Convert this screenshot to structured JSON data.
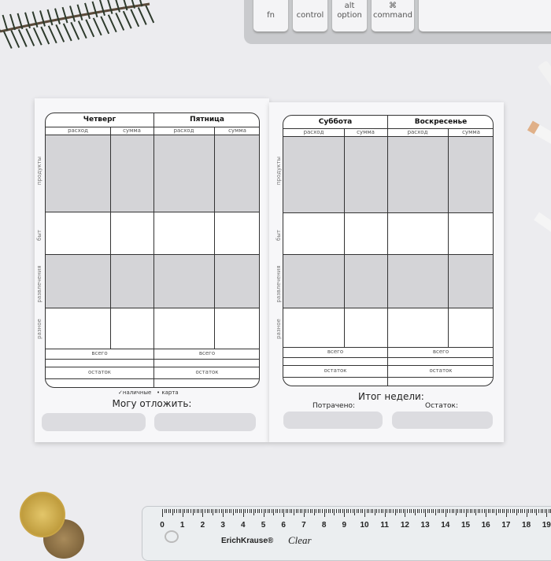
{
  "keyboard": {
    "keys": [
      {
        "top": "",
        "label": "fn"
      },
      {
        "top": "",
        "label": "control"
      },
      {
        "top": "alt",
        "label": "option"
      },
      {
        "top": "⌘",
        "label": "command"
      }
    ]
  },
  "left_page": {
    "days": [
      "Четверг",
      "Пятница"
    ],
    "sub": [
      "расход",
      "сумма"
    ],
    "categories": [
      "продукты",
      "быт",
      "развлечения",
      "разное"
    ],
    "total": "всего",
    "remainder": "остаток",
    "legend": {
      "cash": "✓наличные",
      "card": "• карта"
    },
    "save_title": "Могу отложить:"
  },
  "right_page": {
    "days": [
      "Суббота",
      "Воскресенье"
    ],
    "sub": [
      "расход",
      "сумма"
    ],
    "categories": [
      "продукты",
      "быт",
      "развлечения",
      "разное"
    ],
    "total": "всего",
    "remainder": "остаток",
    "week_total": "Итог недели:",
    "spent": "Потрачено:",
    "left": "Остаток:"
  },
  "ruler": {
    "brand": "ErichKrause®",
    "model": "Clear",
    "numbers": [
      "0",
      "1",
      "2",
      "3",
      "4",
      "5",
      "6",
      "7",
      "8",
      "9",
      "10",
      "11",
      "12",
      "13",
      "14",
      "15",
      "16",
      "17",
      "18",
      "19"
    ]
  },
  "colors": {
    "band": "#d4d4d7",
    "line": "#333333"
  }
}
